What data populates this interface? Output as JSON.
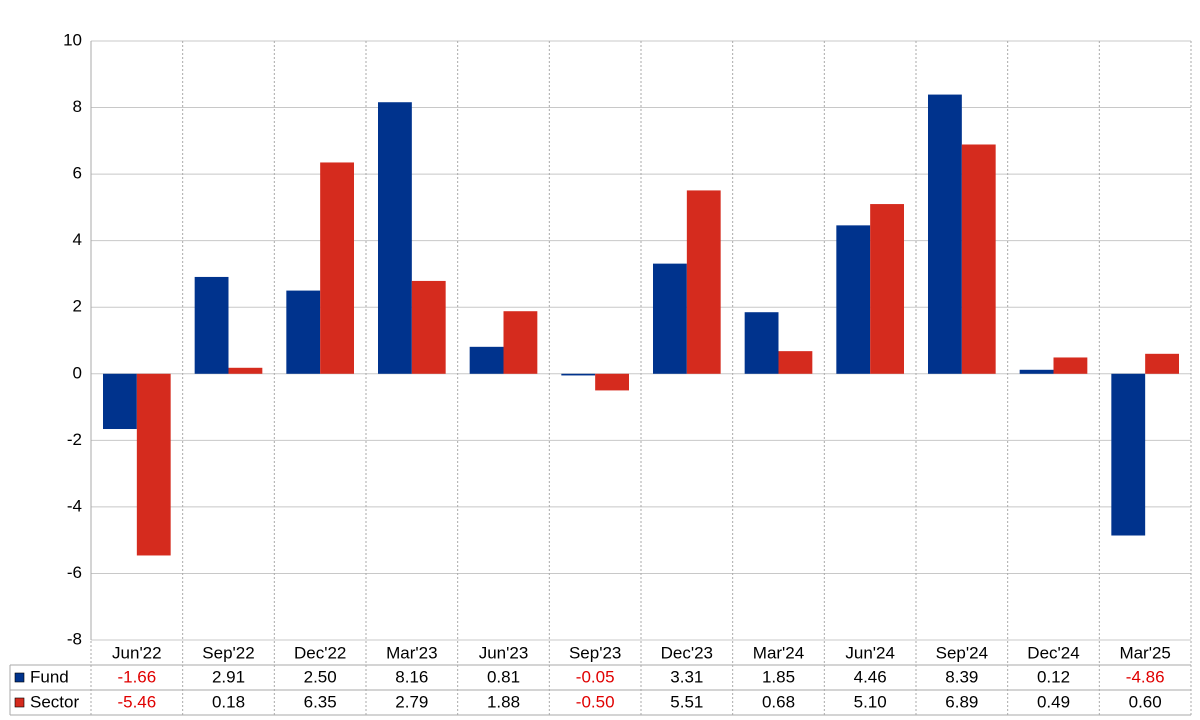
{
  "chart_data": {
    "type": "bar",
    "categories": [
      "Jun'22",
      "Sep'22",
      "Dec'22",
      "Mar'23",
      "Jun'23",
      "Sep'23",
      "Dec'23",
      "Mar'24",
      "Jun'24",
      "Sep'24",
      "Dec'24",
      "Mar'25"
    ],
    "series": [
      {
        "name": "Fund",
        "color": "#00338d",
        "values": [
          -1.66,
          2.91,
          2.5,
          8.16,
          0.81,
          -0.05,
          3.31,
          1.85,
          4.46,
          8.39,
          0.12,
          -4.86
        ],
        "value_labels": [
          "-1.66",
          "2.91",
          "2.50",
          "8.16",
          "0.81",
          "-0.05",
          "3.31",
          "1.85",
          "4.46",
          "8.39",
          "0.12",
          "-4.86"
        ]
      },
      {
        "name": "Sector",
        "color": "#d52b1e",
        "values": [
          -5.46,
          0.18,
          6.35,
          2.79,
          1.88,
          -0.5,
          5.51,
          0.68,
          5.1,
          6.89,
          0.49,
          0.6
        ],
        "value_labels": [
          "-5.46",
          "0.18",
          "6.35",
          "2.79",
          "1.88",
          "-0.50",
          "5.51",
          "0.68",
          "5.10",
          "6.89",
          "0.49",
          "0.60"
        ]
      }
    ],
    "ylim": [
      -8,
      10
    ],
    "yticks": [
      -8,
      -6,
      -4,
      -2,
      0,
      2,
      4,
      6,
      8,
      10
    ],
    "grid": true
  }
}
